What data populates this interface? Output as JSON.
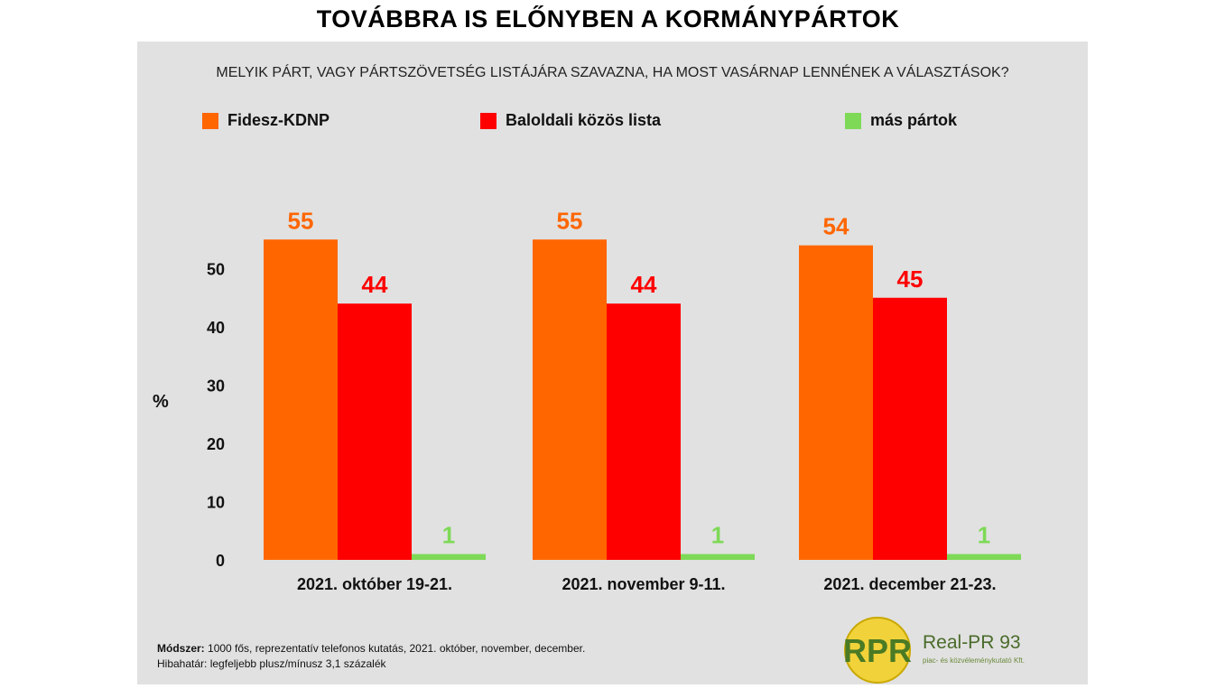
{
  "title": "TOVÁBBRA IS ELŐNYBEN A KORMÁNYPÁRTOK",
  "question": "MELYIK PÁRT, VAGY PÁRTSZÖVETSÉG LISTÁJÁRA SZAVAZNA, HA MOST VASÁRNAP LENNÉNEK A VÁLASZTÁSOK?",
  "colors": {
    "fidesz": "#ff6600",
    "baloldal": "#ff0000",
    "mas": "#7ed957",
    "panel": "#e1e1e1"
  },
  "chart_data": {
    "type": "bar",
    "title": "TOVÁBBRA IS ELŐNYBEN A KORMÁNYPÁRTOK",
    "subtitle": "MELYIK PÁRT, VAGY PÁRTSZÖVETSÉG LISTÁJÁRA SZAVAZNA, HA MOST VASÁRNAP LENNÉNEK A VÁLASZTÁSOK?",
    "ylabel": "%",
    "xlabel": "",
    "ylim": [
      0,
      55
    ],
    "yticks": [
      0,
      10,
      20,
      30,
      40,
      50
    ],
    "grid": false,
    "legend_position": "top",
    "categories": [
      "2021. október 19-21.",
      "2021. november 9-11.",
      "2021. december 21-23."
    ],
    "series": [
      {
        "name": "Fidesz-KDNP",
        "color": "#ff6600",
        "values": [
          55,
          55,
          54
        ]
      },
      {
        "name": "Baloldali közös lista",
        "color": "#ff0000",
        "values": [
          44,
          44,
          45
        ]
      },
      {
        "name": "más pártok",
        "color": "#7ed957",
        "values": [
          1,
          1,
          1
        ]
      }
    ]
  },
  "footer": {
    "method_label": "Módszer:",
    "method_text": "1000 fős, reprezentatív telefonos kutatás, 2021. október, november, december.",
    "error_label": "Hibahatár:",
    "error_text": "legfeljebb plusz/mínusz 3,1 százalék"
  },
  "logo": {
    "mark": "RPR",
    "name": "Real-PR 93",
    "subtitle": "piac- és közvéleménykutató Kft."
  }
}
